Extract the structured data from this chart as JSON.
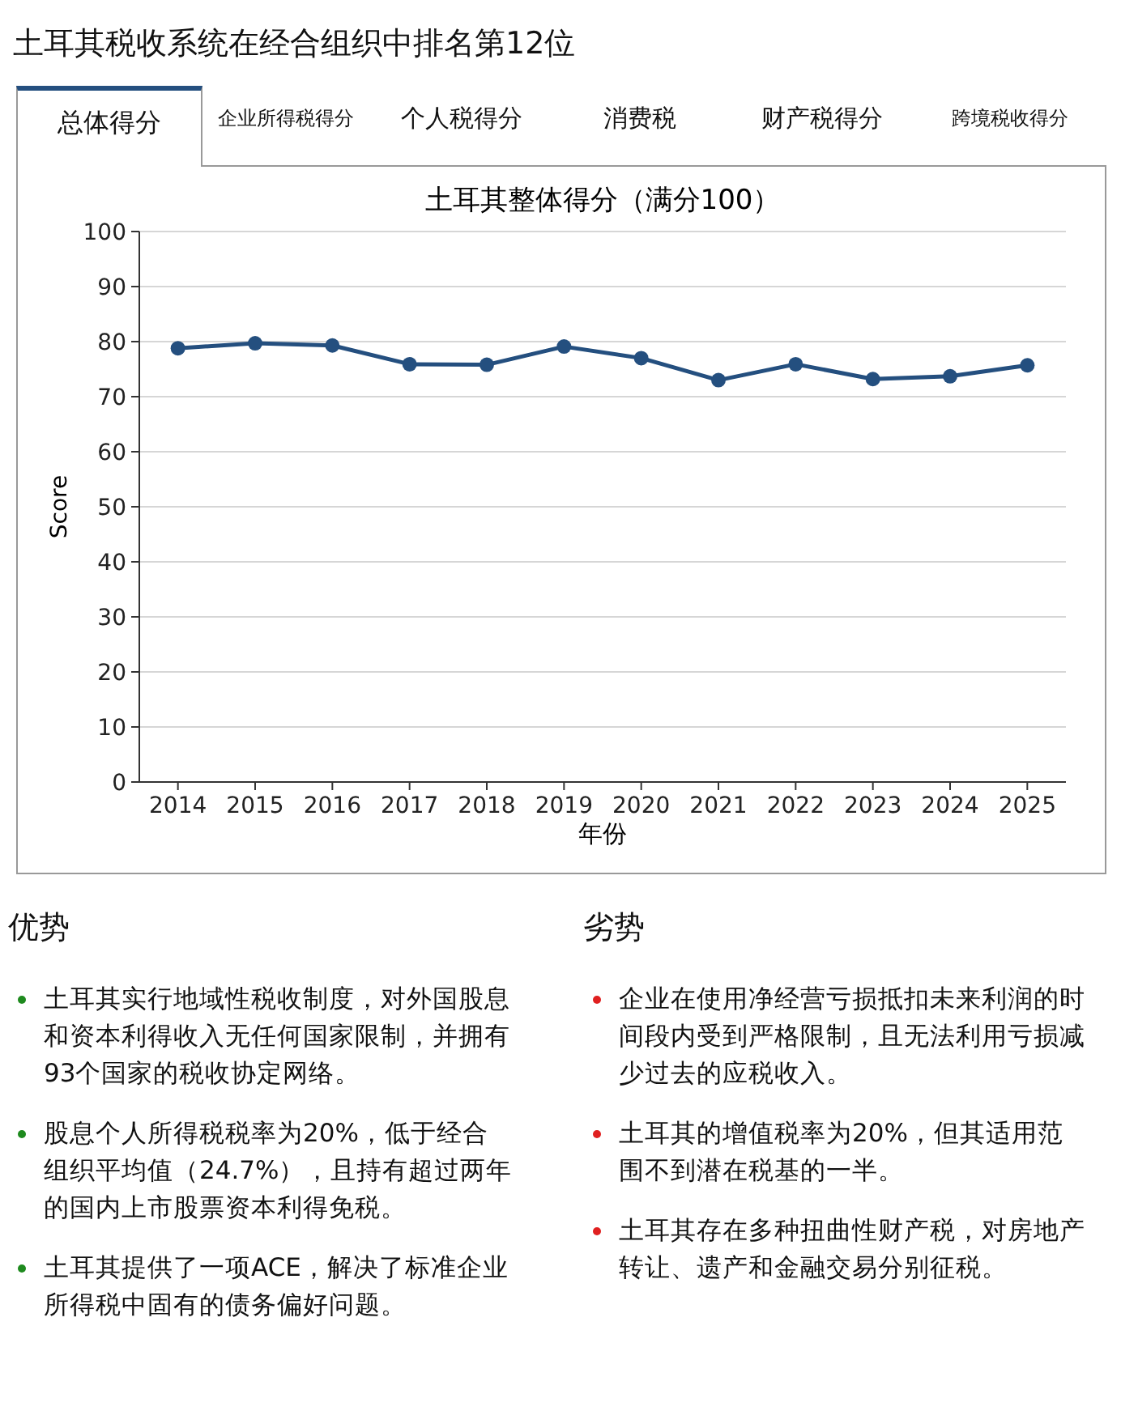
{
  "chart_data": [
    {
      "type": "other",
      "title": "土耳其税收系统在经合组织中排名第12位",
      "annotations": [
        "总体得分",
        "企业所得税得分",
        "个人税得分",
        "消费税",
        "财产税得分",
        "跨境税收得分"
      ]
    },
    {
      "type": "line",
      "title": "土耳其整体得分（满分100）",
      "xlabel": "年份",
      "ylabel": "Score",
      "categories": [
        "2014",
        "2015",
        "2016",
        "2017",
        "2018",
        "2019",
        "2020",
        "2021",
        "2022",
        "2023",
        "2024",
        "2025"
      ],
      "series": [
        {
          "color": "#244f7f",
          "values": [
            78.8,
            79.7,
            79.3,
            75.9,
            75.8,
            79.1,
            77.0,
            73.0,
            75.9,
            73.2,
            73.7,
            75.7
          ]
        }
      ],
      "ylim": [
        0,
        100
      ],
      "yticks": [
        0,
        10,
        20,
        30,
        40,
        50,
        60,
        70,
        80,
        90,
        100
      ],
      "grid": "y",
      "marker": "circle",
      "line_style": "solid"
    },
    {
      "type": "other",
      "title": "优势",
      "color": "#1e8a1e",
      "annotations": [
        "土耳其实行地域性税收制度，对外国股息和资本利得收入无任何国家限制，并拥有93个国家的税收协定网络。",
        "股息个人所得税税率为20%，低于经合组织平均值（24.7%），且持有超过两年的国内上市股票资本利得免税。",
        "土耳其提供了一项ACE，解决了标准企业所得税中固有的债务偏好问题。"
      ]
    },
    {
      "type": "other",
      "title": "劣势",
      "color": "#e02020",
      "annotations": [
        "企业在使用净经营亏损抵扣未来利润的时间段内受到严格限制，且无法利用亏损减少过去的应税收入。",
        "土耳其的增值税率为20%，但其适用范围不到潜在税基的一半。",
        "土耳其存在多种扭曲性财产税，对房地产转让、遗产和金融交易分别征税。"
      ]
    }
  ]
}
